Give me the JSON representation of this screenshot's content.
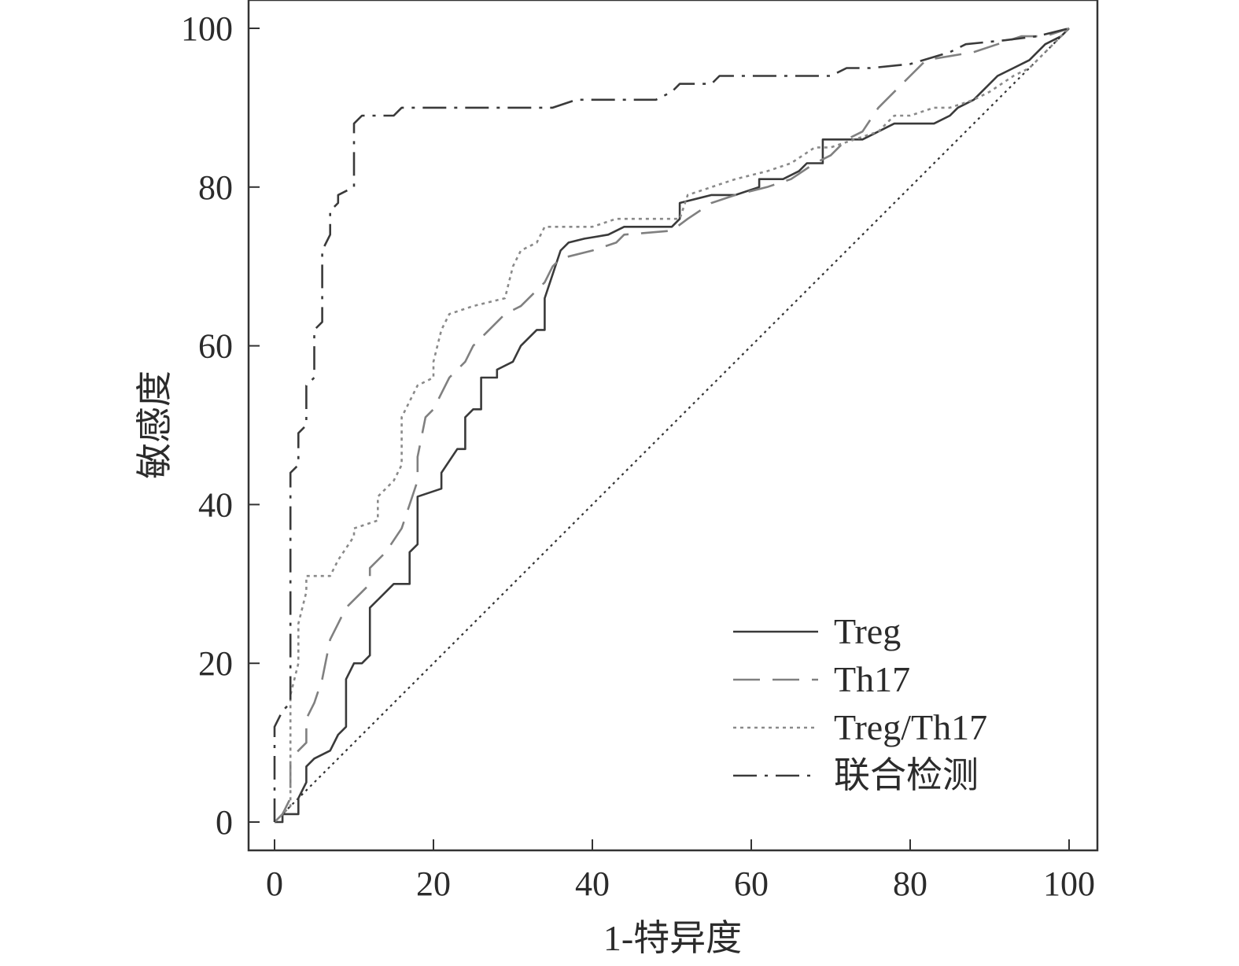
{
  "chart_data": {
    "type": "line",
    "title": "",
    "xlabel": "1-特异度",
    "ylabel": "敏感度",
    "xlim": [
      0,
      100
    ],
    "ylim": [
      0,
      100
    ],
    "x_ticks": [
      "0",
      "20",
      "40",
      "60",
      "80",
      "100"
    ],
    "y_ticks": [
      "0",
      "20",
      "40",
      "60",
      "80",
      "100"
    ],
    "legend_position": "bottom-right",
    "grid": false,
    "reference_line": {
      "style": "dotted",
      "points": [
        [
          0,
          0
        ],
        [
          100,
          100
        ]
      ]
    },
    "series": [
      {
        "name": "Treg",
        "style": "solid",
        "color": "#3a3a3a",
        "points": [
          [
            0,
            0
          ],
          [
            1,
            0
          ],
          [
            1,
            1
          ],
          [
            3,
            1
          ],
          [
            3,
            3
          ],
          [
            4,
            5
          ],
          [
            4,
            7
          ],
          [
            5,
            8
          ],
          [
            7,
            9
          ],
          [
            8,
            11
          ],
          [
            9,
            12
          ],
          [
            9,
            18
          ],
          [
            10,
            20
          ],
          [
            11,
            20
          ],
          [
            12,
            21
          ],
          [
            12,
            27
          ],
          [
            13,
            28
          ],
          [
            14,
            29
          ],
          [
            15,
            30
          ],
          [
            17,
            30
          ],
          [
            17,
            34
          ],
          [
            18,
            35
          ],
          [
            18,
            41
          ],
          [
            21,
            42
          ],
          [
            21,
            44
          ],
          [
            23,
            47
          ],
          [
            24,
            47
          ],
          [
            24,
            51
          ],
          [
            25,
            52
          ],
          [
            26,
            52
          ],
          [
            26,
            56
          ],
          [
            28,
            56
          ],
          [
            28,
            57
          ],
          [
            30,
            58
          ],
          [
            31,
            60
          ],
          [
            33,
            62
          ],
          [
            34,
            62
          ],
          [
            34,
            66
          ],
          [
            35,
            69
          ],
          [
            36,
            72
          ],
          [
            37,
            73
          ],
          [
            39,
            73.5
          ],
          [
            42,
            74
          ],
          [
            44,
            75
          ],
          [
            50,
            75
          ],
          [
            51,
            76
          ],
          [
            51,
            78
          ],
          [
            55,
            79
          ],
          [
            58,
            79
          ],
          [
            61,
            80
          ],
          [
            61,
            81
          ],
          [
            64,
            81
          ],
          [
            66,
            82
          ],
          [
            67,
            83
          ],
          [
            69,
            83
          ],
          [
            69,
            86
          ],
          [
            70,
            86
          ],
          [
            74,
            86
          ],
          [
            76,
            87
          ],
          [
            78,
            88
          ],
          [
            83,
            88
          ],
          [
            85,
            89
          ],
          [
            86,
            90
          ],
          [
            88,
            91
          ],
          [
            89,
            92
          ],
          [
            91,
            94
          ],
          [
            93,
            95
          ],
          [
            95,
            96
          ],
          [
            97,
            98
          ],
          [
            99,
            99
          ],
          [
            100,
            100
          ]
        ]
      },
      {
        "name": "Th17",
        "style": "dashed",
        "color": "#808080",
        "points": [
          [
            0,
            0
          ],
          [
            1,
            1
          ],
          [
            2,
            3
          ],
          [
            2,
            8
          ],
          [
            3,
            9
          ],
          [
            4,
            10
          ],
          [
            4,
            13
          ],
          [
            5,
            15
          ],
          [
            6,
            18
          ],
          [
            7,
            23
          ],
          [
            8,
            25
          ],
          [
            9,
            27
          ],
          [
            11,
            29
          ],
          [
            12,
            30
          ],
          [
            12,
            32
          ],
          [
            13,
            33
          ],
          [
            14,
            34
          ],
          [
            16,
            37
          ],
          [
            17,
            40
          ],
          [
            18,
            43
          ],
          [
            18,
            46
          ],
          [
            19,
            51
          ],
          [
            20,
            52
          ],
          [
            21,
            54
          ],
          [
            22,
            56
          ],
          [
            23,
            57
          ],
          [
            24,
            58
          ],
          [
            25,
            60
          ],
          [
            27,
            62
          ],
          [
            29,
            64
          ],
          [
            31,
            65
          ],
          [
            33,
            67
          ],
          [
            34,
            68
          ],
          [
            35,
            70
          ],
          [
            36,
            71
          ],
          [
            40,
            72
          ],
          [
            43,
            73
          ],
          [
            44,
            74
          ],
          [
            50,
            74.5
          ],
          [
            52,
            76
          ],
          [
            55,
            78
          ],
          [
            58,
            79
          ],
          [
            62,
            80
          ],
          [
            65,
            81
          ],
          [
            68,
            83
          ],
          [
            70,
            84
          ],
          [
            72,
            86
          ],
          [
            74,
            87
          ],
          [
            76,
            90
          ],
          [
            78,
            92
          ],
          [
            80,
            94
          ],
          [
            82,
            96
          ],
          [
            85,
            96.5
          ],
          [
            88,
            97
          ],
          [
            91,
            98
          ],
          [
            94,
            99
          ],
          [
            97,
            99
          ],
          [
            100,
            100
          ]
        ]
      },
      {
        "name": "Treg/Th17",
        "style": "dotted",
        "color": "#8a8a8a",
        "points": [
          [
            0,
            0
          ],
          [
            1,
            1
          ],
          [
            2,
            2
          ],
          [
            2,
            16
          ],
          [
            3,
            20
          ],
          [
            3,
            25
          ],
          [
            4,
            29
          ],
          [
            4,
            31
          ],
          [
            7,
            31
          ],
          [
            8,
            33
          ],
          [
            10,
            36
          ],
          [
            10,
            37
          ],
          [
            13,
            38
          ],
          [
            13,
            41
          ],
          [
            15,
            43
          ],
          [
            16,
            45
          ],
          [
            16,
            51
          ],
          [
            18,
            55
          ],
          [
            20,
            56
          ],
          [
            20,
            58
          ],
          [
            21,
            62
          ],
          [
            22,
            64
          ],
          [
            25,
            65
          ],
          [
            29,
            66
          ],
          [
            30,
            70
          ],
          [
            31,
            72
          ],
          [
            33,
            73
          ],
          [
            34,
            75
          ],
          [
            40,
            75
          ],
          [
            43,
            76
          ],
          [
            51,
            76
          ],
          [
            52,
            79
          ],
          [
            55,
            80
          ],
          [
            58,
            81
          ],
          [
            62,
            82
          ],
          [
            65,
            83
          ],
          [
            68,
            85
          ],
          [
            70,
            85
          ],
          [
            73,
            86
          ],
          [
            76,
            87
          ],
          [
            78,
            89
          ],
          [
            80,
            89
          ],
          [
            83,
            90
          ],
          [
            85,
            90
          ],
          [
            88,
            91
          ],
          [
            90,
            92
          ],
          [
            93,
            94
          ],
          [
            95,
            95
          ],
          [
            97,
            97
          ],
          [
            99,
            99
          ],
          [
            100,
            100
          ]
        ]
      },
      {
        "name": "联合检测",
        "style": "dashdot",
        "color": "#3a3a3a",
        "points": [
          [
            0,
            0
          ],
          [
            0,
            12
          ],
          [
            1,
            14
          ],
          [
            2,
            15
          ],
          [
            2,
            25
          ],
          [
            2,
            44
          ],
          [
            3,
            45
          ],
          [
            3,
            49
          ],
          [
            4,
            50
          ],
          [
            4,
            55
          ],
          [
            5,
            56
          ],
          [
            5,
            62
          ],
          [
            6,
            63
          ],
          [
            6,
            72
          ],
          [
            7,
            74
          ],
          [
            7,
            77
          ],
          [
            8,
            78
          ],
          [
            8,
            79
          ],
          [
            10,
            80
          ],
          [
            10,
            88
          ],
          [
            11,
            89
          ],
          [
            15,
            89
          ],
          [
            16,
            90
          ],
          [
            20,
            90
          ],
          [
            35,
            90
          ],
          [
            38,
            91
          ],
          [
            48,
            91
          ],
          [
            50,
            92
          ],
          [
            51,
            93
          ],
          [
            55,
            93
          ],
          [
            56,
            94
          ],
          [
            60,
            94
          ],
          [
            70,
            94
          ],
          [
            72,
            95
          ],
          [
            75,
            95
          ],
          [
            80,
            95.5
          ],
          [
            85,
            97
          ],
          [
            87,
            98
          ],
          [
            92,
            98.5
          ],
          [
            96,
            99
          ],
          [
            100,
            100
          ]
        ]
      }
    ]
  }
}
